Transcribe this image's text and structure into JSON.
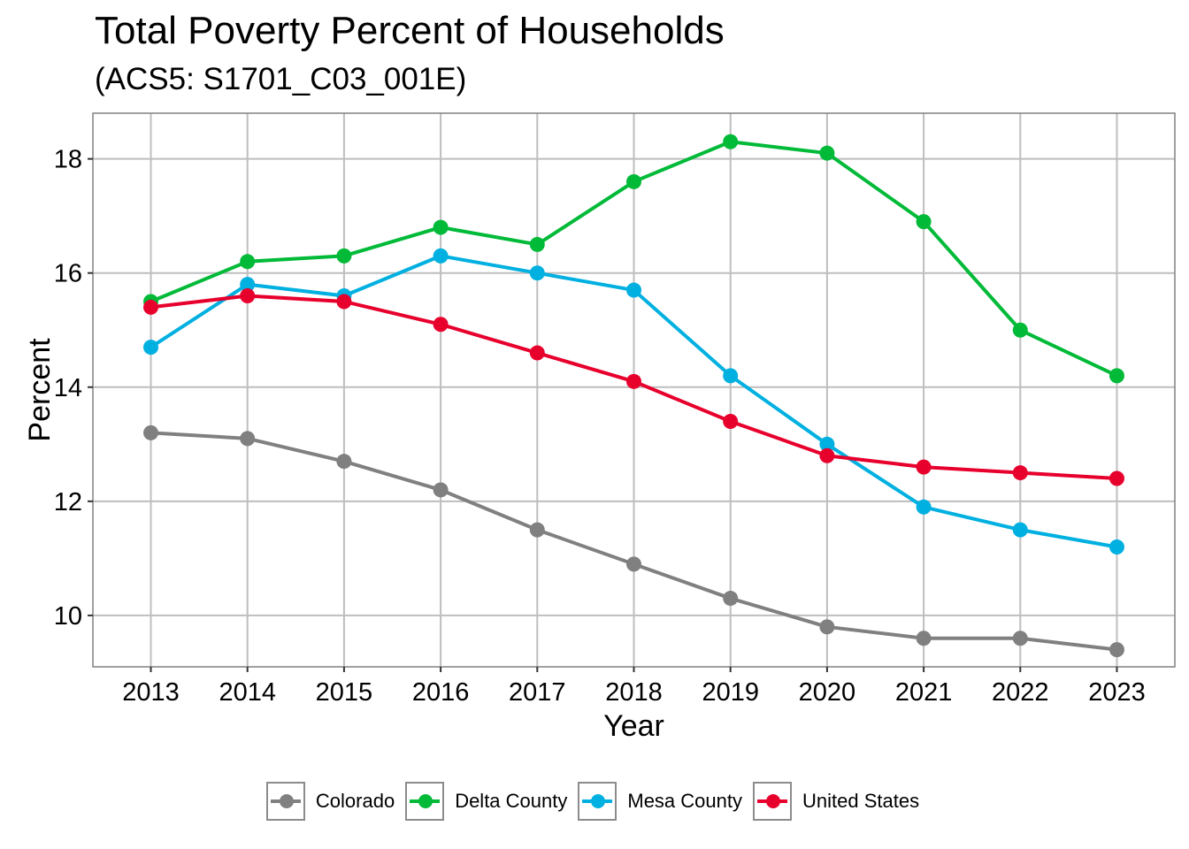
{
  "chart_data": {
    "type": "line",
    "title": "Total Poverty Percent of Households",
    "subtitle": "(ACS5: S1701_C03_001E)",
    "xlabel": "Year",
    "ylabel": "Percent",
    "x": [
      2013,
      2014,
      2015,
      2016,
      2017,
      2018,
      2019,
      2020,
      2021,
      2022,
      2023
    ],
    "x_tick_labels": [
      "2013",
      "2014",
      "2015",
      "2016",
      "2017",
      "2018",
      "2019",
      "2020",
      "2021",
      "2022",
      "2023"
    ],
    "y_ticks": [
      10,
      12,
      14,
      16,
      18
    ],
    "y_tick_labels": [
      "10",
      "12",
      "14",
      "16",
      "18"
    ],
    "xlim": [
      2012.4,
      2023.6
    ],
    "ylim": [
      9.1,
      18.8
    ],
    "grid": true,
    "legend_position": "bottom",
    "series": [
      {
        "name": "Colorado",
        "color": "#808080",
        "values": [
          13.2,
          13.1,
          12.7,
          12.2,
          11.5,
          10.9,
          10.3,
          9.8,
          9.6,
          9.6,
          9.4
        ]
      },
      {
        "name": "Delta County",
        "color": "#00BA38",
        "values": [
          15.5,
          16.2,
          16.3,
          16.8,
          16.5,
          17.6,
          18.3,
          18.1,
          16.9,
          15.0,
          14.2
        ]
      },
      {
        "name": "Mesa County",
        "color": "#00B0E0",
        "values": [
          14.7,
          15.8,
          15.6,
          16.3,
          16.0,
          15.7,
          14.2,
          13.0,
          11.9,
          11.5,
          11.2
        ]
      },
      {
        "name": "United States",
        "color": "#E8002D",
        "values": [
          15.4,
          15.6,
          15.5,
          15.1,
          14.6,
          14.1,
          13.4,
          12.8,
          12.6,
          12.5,
          12.4
        ]
      }
    ]
  }
}
